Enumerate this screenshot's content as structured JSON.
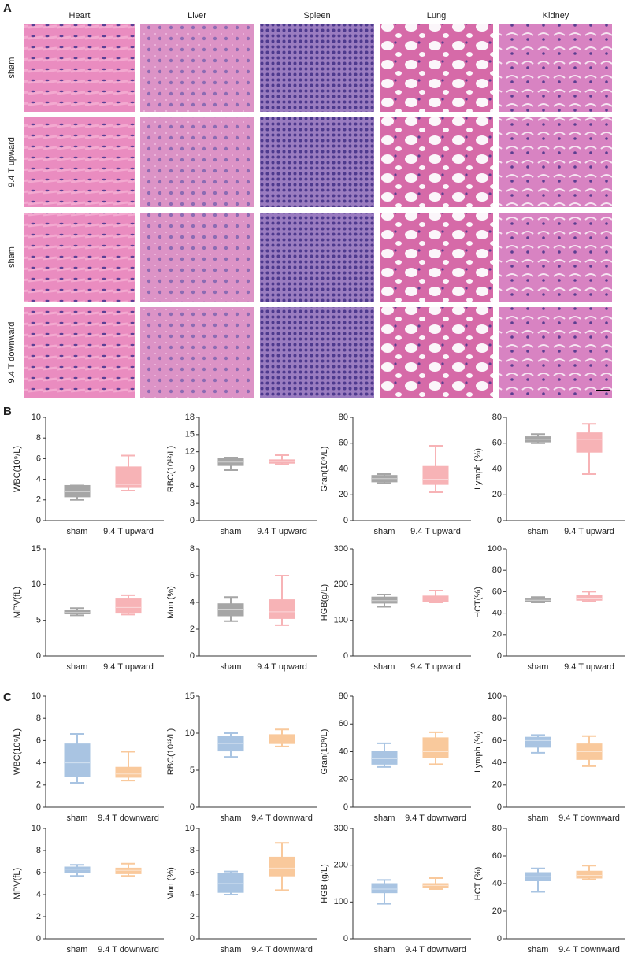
{
  "panel_a": {
    "label": "A",
    "columns": [
      "Heart",
      "Liver",
      "Spleen",
      "Lung",
      "Kidney"
    ],
    "rows": [
      "sham",
      "9.4 T upward",
      "sham",
      "9.4 T downward"
    ]
  },
  "panel_b": {
    "label": "B"
  },
  "panel_c": {
    "label": "C"
  },
  "chart_data": [
    {
      "type": "box",
      "ylabel": "WBC(10⁹/L)",
      "categories": [
        "sham",
        "9.4 T upward"
      ],
      "colors": [
        "#a6a6a6",
        "#f7b3b6"
      ],
      "ylim": [
        0,
        10
      ],
      "yticks": [
        0,
        2,
        4,
        6,
        8,
        10
      ],
      "boxes": [
        {
          "min": 2.0,
          "q1": 2.3,
          "median": 2.8,
          "q3": 3.4,
          "max": 3.4
        },
        {
          "min": 2.9,
          "q1": 3.2,
          "median": 3.5,
          "q3": 5.2,
          "max": 6.3
        }
      ]
    },
    {
      "type": "box",
      "ylabel": "RBC(10¹²/L)",
      "categories": [
        "sham",
        "9.4 T upward"
      ],
      "colors": [
        "#a6a6a6",
        "#f7b3b6"
      ],
      "ylim": [
        0,
        18
      ],
      "yticks": [
        0,
        3,
        6,
        9,
        12,
        15,
        18
      ],
      "boxes": [
        {
          "min": 8.8,
          "q1": 9.6,
          "median": 10.2,
          "q3": 10.8,
          "max": 11.0
        },
        {
          "min": 9.8,
          "q1": 10.0,
          "median": 10.3,
          "q3": 10.6,
          "max": 11.4
        }
      ]
    },
    {
      "type": "box",
      "ylabel": "Gran(10⁹/L)",
      "categories": [
        "sham",
        "9.4 T upward"
      ],
      "colors": [
        "#a6a6a6",
        "#f7b3b6"
      ],
      "ylim": [
        0,
        80
      ],
      "yticks": [
        0,
        20,
        40,
        60,
        80
      ],
      "boxes": [
        {
          "min": 29,
          "q1": 30,
          "median": 32.5,
          "q3": 35,
          "max": 36
        },
        {
          "min": 22,
          "q1": 28,
          "median": 32,
          "q3": 42,
          "max": 58
        }
      ]
    },
    {
      "type": "box",
      "ylabel": "Lymph (%)",
      "categories": [
        "sham",
        "9.4 T upward"
      ],
      "colors": [
        "#a6a6a6",
        "#f7b3b6"
      ],
      "ylim": [
        0,
        80
      ],
      "yticks": [
        0,
        20,
        40,
        60,
        80
      ],
      "boxes": [
        {
          "min": 60,
          "q1": 61,
          "median": 63,
          "q3": 65,
          "max": 67
        },
        {
          "min": 36,
          "q1": 53,
          "median": 63,
          "q3": 68,
          "max": 75
        }
      ]
    },
    {
      "type": "box",
      "ylabel": "MPV(fL)",
      "categories": [
        "sham",
        "9.4 T upward"
      ],
      "colors": [
        "#a6a6a6",
        "#f7b3b6"
      ],
      "ylim": [
        0,
        15
      ],
      "yticks": [
        0,
        5,
        10,
        15
      ],
      "boxes": [
        {
          "min": 5.7,
          "q1": 5.9,
          "median": 6.1,
          "q3": 6.4,
          "max": 6.7
        },
        {
          "min": 5.8,
          "q1": 6.0,
          "median": 6.8,
          "q3": 8.1,
          "max": 8.5
        }
      ]
    },
    {
      "type": "box",
      "ylabel": "Mon (%)",
      "categories": [
        "sham",
        "9.4 T upward"
      ],
      "colors": [
        "#a6a6a6",
        "#f7b3b6"
      ],
      "ylim": [
        0,
        8
      ],
      "yticks": [
        0,
        2,
        4,
        6,
        8
      ],
      "boxes": [
        {
          "min": 2.6,
          "q1": 3.0,
          "median": 3.5,
          "q3": 3.9,
          "max": 4.4
        },
        {
          "min": 2.3,
          "q1": 2.8,
          "median": 3.3,
          "q3": 4.2,
          "max": 6.0
        }
      ]
    },
    {
      "type": "box",
      "ylabel": "HGB(g/L)",
      "categories": [
        "sham",
        "9.4 T upward"
      ],
      "colors": [
        "#a6a6a6",
        "#f7b3b6"
      ],
      "ylim": [
        0,
        300
      ],
      "yticks": [
        0,
        100,
        200,
        300
      ],
      "boxes": [
        {
          "min": 138,
          "q1": 148,
          "median": 155,
          "q3": 165,
          "max": 172
        },
        {
          "min": 150,
          "q1": 152,
          "median": 160,
          "q3": 168,
          "max": 183
        }
      ]
    },
    {
      "type": "box",
      "ylabel": "HCT(%)",
      "categories": [
        "sham",
        "9.4 T upward"
      ],
      "colors": [
        "#a6a6a6",
        "#f7b3b6"
      ],
      "ylim": [
        0,
        100
      ],
      "yticks": [
        0,
        20,
        40,
        60,
        80,
        100
      ],
      "boxes": [
        {
          "min": 50,
          "q1": 51,
          "median": 52,
          "q3": 54,
          "max": 55
        },
        {
          "min": 51,
          "q1": 52,
          "median": 54,
          "q3": 57,
          "max": 60
        }
      ]
    },
    {
      "type": "box",
      "ylabel": "WBC(10⁹/L)",
      "categories": [
        "sham",
        "9.4 T downward"
      ],
      "colors": [
        "#a9c4e2",
        "#f9c99c"
      ],
      "ylim": [
        0,
        10
      ],
      "yticks": [
        0,
        2,
        4,
        6,
        8,
        10
      ],
      "boxes": [
        {
          "min": 2.2,
          "q1": 2.8,
          "median": 4.0,
          "q3": 5.7,
          "max": 6.6
        },
        {
          "min": 2.4,
          "q1": 2.7,
          "median": 3.0,
          "q3": 3.6,
          "max": 5.0
        }
      ]
    },
    {
      "type": "box",
      "ylabel": "RBC(10¹²/L)",
      "categories": [
        "sham",
        "9.4 T downward"
      ],
      "colors": [
        "#a9c4e2",
        "#f9c99c"
      ],
      "ylim": [
        0,
        15
      ],
      "yticks": [
        0,
        5,
        10,
        15
      ],
      "boxes": [
        {
          "min": 6.8,
          "q1": 7.6,
          "median": 8.6,
          "q3": 9.6,
          "max": 10.0
        },
        {
          "min": 8.2,
          "q1": 8.6,
          "median": 9.2,
          "q3": 9.8,
          "max": 10.5
        }
      ]
    },
    {
      "type": "box",
      "ylabel": "Gran(10⁹/L)",
      "categories": [
        "sham",
        "9.4 T downward"
      ],
      "colors": [
        "#a9c4e2",
        "#f9c99c"
      ],
      "ylim": [
        0,
        80
      ],
      "yticks": [
        0,
        20,
        40,
        60,
        80
      ],
      "boxes": [
        {
          "min": 29,
          "q1": 31,
          "median": 35,
          "q3": 40,
          "max": 46
        },
        {
          "min": 31,
          "q1": 36,
          "median": 40,
          "q3": 50,
          "max": 54
        }
      ]
    },
    {
      "type": "box",
      "ylabel": "Lymph (%)",
      "categories": [
        "sham",
        "9.4 T downward"
      ],
      "colors": [
        "#a9c4e2",
        "#f9c99c"
      ],
      "ylim": [
        0,
        100
      ],
      "yticks": [
        0,
        20,
        40,
        60,
        80,
        100
      ],
      "boxes": [
        {
          "min": 49,
          "q1": 54,
          "median": 60,
          "q3": 63,
          "max": 65
        },
        {
          "min": 37,
          "q1": 43,
          "median": 50,
          "q3": 57,
          "max": 64
        }
      ]
    },
    {
      "type": "box",
      "ylabel": "MPV(fL)",
      "categories": [
        "sham",
        "9.4 T downward"
      ],
      "colors": [
        "#a9c4e2",
        "#f9c99c"
      ],
      "ylim": [
        0,
        10
      ],
      "yticks": [
        0,
        2,
        4,
        6,
        8,
        10
      ],
      "boxes": [
        {
          "min": 5.7,
          "q1": 6.0,
          "median": 6.3,
          "q3": 6.5,
          "max": 6.7
        },
        {
          "min": 5.7,
          "q1": 5.9,
          "median": 6.2,
          "q3": 6.4,
          "max": 6.8
        }
      ]
    },
    {
      "type": "box",
      "ylabel": "Mon (%)",
      "categories": [
        "sham",
        "9.4 T downward"
      ],
      "colors": [
        "#a9c4e2",
        "#f9c99c"
      ],
      "ylim": [
        0,
        10
      ],
      "yticks": [
        0,
        2,
        4,
        6,
        8,
        10
      ],
      "boxes": [
        {
          "min": 4.0,
          "q1": 4.2,
          "median": 5.0,
          "q3": 5.9,
          "max": 6.1
        },
        {
          "min": 4.4,
          "q1": 5.7,
          "median": 6.4,
          "q3": 7.4,
          "max": 8.7
        }
      ]
    },
    {
      "type": "box",
      "ylabel": "HGB (g/L)",
      "categories": [
        "sham",
        "9.4 T downward"
      ],
      "colors": [
        "#a9c4e2",
        "#f9c99c"
      ],
      "ylim": [
        0,
        300
      ],
      "yticks": [
        0,
        100,
        200,
        300
      ],
      "boxes": [
        {
          "min": 95,
          "q1": 125,
          "median": 135,
          "q3": 150,
          "max": 160
        },
        {
          "min": 135,
          "q1": 140,
          "median": 145,
          "q3": 150,
          "max": 165
        }
      ]
    },
    {
      "type": "box",
      "ylabel": "HCT (%)",
      "categories": [
        "sham",
        "9.4 T downward"
      ],
      "colors": [
        "#a9c4e2",
        "#f9c99c"
      ],
      "ylim": [
        0,
        80
      ],
      "yticks": [
        0,
        20,
        40,
        60,
        80
      ],
      "boxes": [
        {
          "min": 34,
          "q1": 42,
          "median": 45,
          "q3": 48,
          "max": 51
        },
        {
          "min": 43,
          "q1": 44,
          "median": 46,
          "q3": 49,
          "max": 53
        }
      ]
    }
  ]
}
